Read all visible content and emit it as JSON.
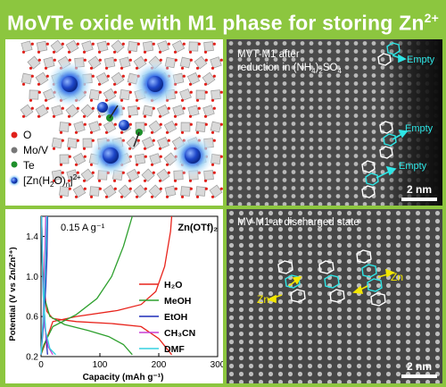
{
  "title": {
    "main": "MoVTe oxide with M1 phase for storing Zn",
    "sup": "2+"
  },
  "structure_legend": {
    "o": "O",
    "mov": "Mo/V",
    "te": "Te",
    "zn_prefix": "[Zn(H",
    "zn_sub2": "2",
    "zn_mid": "O)",
    "zn_subn": "n",
    "zn_end": "]",
    "zn_sup": "2+"
  },
  "tem_top": {
    "caption_a": "MVT-M1 after",
    "caption_b1": "reduction in (NH",
    "caption_b_sub1": "4",
    "caption_b2": ")",
    "caption_b_sub2": "2",
    "caption_b3": "SO",
    "caption_b_sub3": "4",
    "empty_labels": [
      "Empty",
      "Empty",
      "Empty"
    ],
    "scale": "2 nm"
  },
  "tem_bottom": {
    "caption": "MV-M1 at discharged state",
    "zn_labels": [
      "Zn",
      "Zn"
    ],
    "scale": "2 nm"
  },
  "colors": {
    "banner": "#8cc63f",
    "cyan": "#2ee6e6",
    "yellow": "#f2e600"
  },
  "chart_data": {
    "type": "line",
    "title": "",
    "rate_label": "0.15 A g⁻¹",
    "electrolyte_label": "Zn(OTf)₂",
    "xlabel": "Capacity (mAh g⁻¹)",
    "ylabel": "Potential (V vs Zn/Zn²⁺)",
    "xlim": [
      0,
      300
    ],
    "ylim": [
      0.2,
      1.6
    ],
    "xticks": [
      "0",
      "100",
      "200",
      "300"
    ],
    "yticks": [
      "0.2",
      "0.6",
      "1.0",
      "1.4"
    ],
    "legend_position": "right",
    "series": [
      {
        "name": "H₂O",
        "color": "#e8231b",
        "charge": [
          [
            0,
            0.22
          ],
          [
            5,
            0.3
          ],
          [
            20,
            0.55
          ],
          [
            60,
            0.6
          ],
          [
            130,
            0.66
          ],
          [
            170,
            0.72
          ],
          [
            195,
            0.85
          ],
          [
            210,
            1.1
          ],
          [
            220,
            1.45
          ],
          [
            222,
            1.6
          ]
        ],
        "discharge": [
          [
            222,
            0.22
          ],
          [
            200,
            0.38
          ],
          [
            170,
            0.5
          ],
          [
            120,
            0.53
          ],
          [
            60,
            0.55
          ],
          [
            20,
            0.58
          ],
          [
            10,
            0.65
          ],
          [
            4,
            0.95
          ],
          [
            2,
            1.3
          ],
          [
            1,
            1.6
          ]
        ]
      },
      {
        "name": "MeOH",
        "color": "#2ea02e",
        "charge": [
          [
            0,
            0.22
          ],
          [
            5,
            0.32
          ],
          [
            20,
            0.5
          ],
          [
            60,
            0.62
          ],
          [
            95,
            0.78
          ],
          [
            120,
            1.0
          ],
          [
            140,
            1.3
          ],
          [
            155,
            1.6
          ]
        ],
        "discharge": [
          [
            155,
            0.22
          ],
          [
            140,
            0.32
          ],
          [
            115,
            0.4
          ],
          [
            80,
            0.46
          ],
          [
            40,
            0.52
          ],
          [
            15,
            0.6
          ],
          [
            5,
            0.8
          ],
          [
            2,
            1.2
          ],
          [
            1,
            1.6
          ]
        ]
      },
      {
        "name": "EtOH",
        "color": "#1f2db8",
        "charge": [
          [
            0,
            0.22
          ],
          [
            4,
            0.5
          ],
          [
            8,
            0.9
          ],
          [
            10,
            1.2
          ],
          [
            11,
            1.6
          ]
        ],
        "discharge": [
          [
            11,
            0.22
          ],
          [
            7,
            0.5
          ],
          [
            4,
            0.85
          ],
          [
            2,
            1.2
          ],
          [
            1,
            1.6
          ]
        ]
      },
      {
        "name": "CH₃CN",
        "color": "#c93fd3",
        "charge": [
          [
            0,
            0.22
          ],
          [
            3,
            0.5
          ],
          [
            5,
            0.9
          ],
          [
            7,
            1.3
          ],
          [
            8,
            1.6
          ]
        ],
        "discharge": [
          [
            20,
            0.22
          ],
          [
            12,
            0.3
          ],
          [
            6,
            0.5
          ],
          [
            3,
            0.9
          ],
          [
            1,
            1.6
          ]
        ]
      },
      {
        "name": "DMF",
        "color": "#35d0e0",
        "charge": [
          [
            0,
            0.22
          ],
          [
            4,
            0.6
          ],
          [
            7,
            1.0
          ],
          [
            9,
            1.4
          ],
          [
            10,
            1.6
          ]
        ],
        "discharge": [
          [
            25,
            0.22
          ],
          [
            15,
            0.28
          ],
          [
            8,
            0.45
          ],
          [
            4,
            0.8
          ],
          [
            2,
            1.2
          ],
          [
            1,
            1.6
          ]
        ]
      }
    ]
  }
}
